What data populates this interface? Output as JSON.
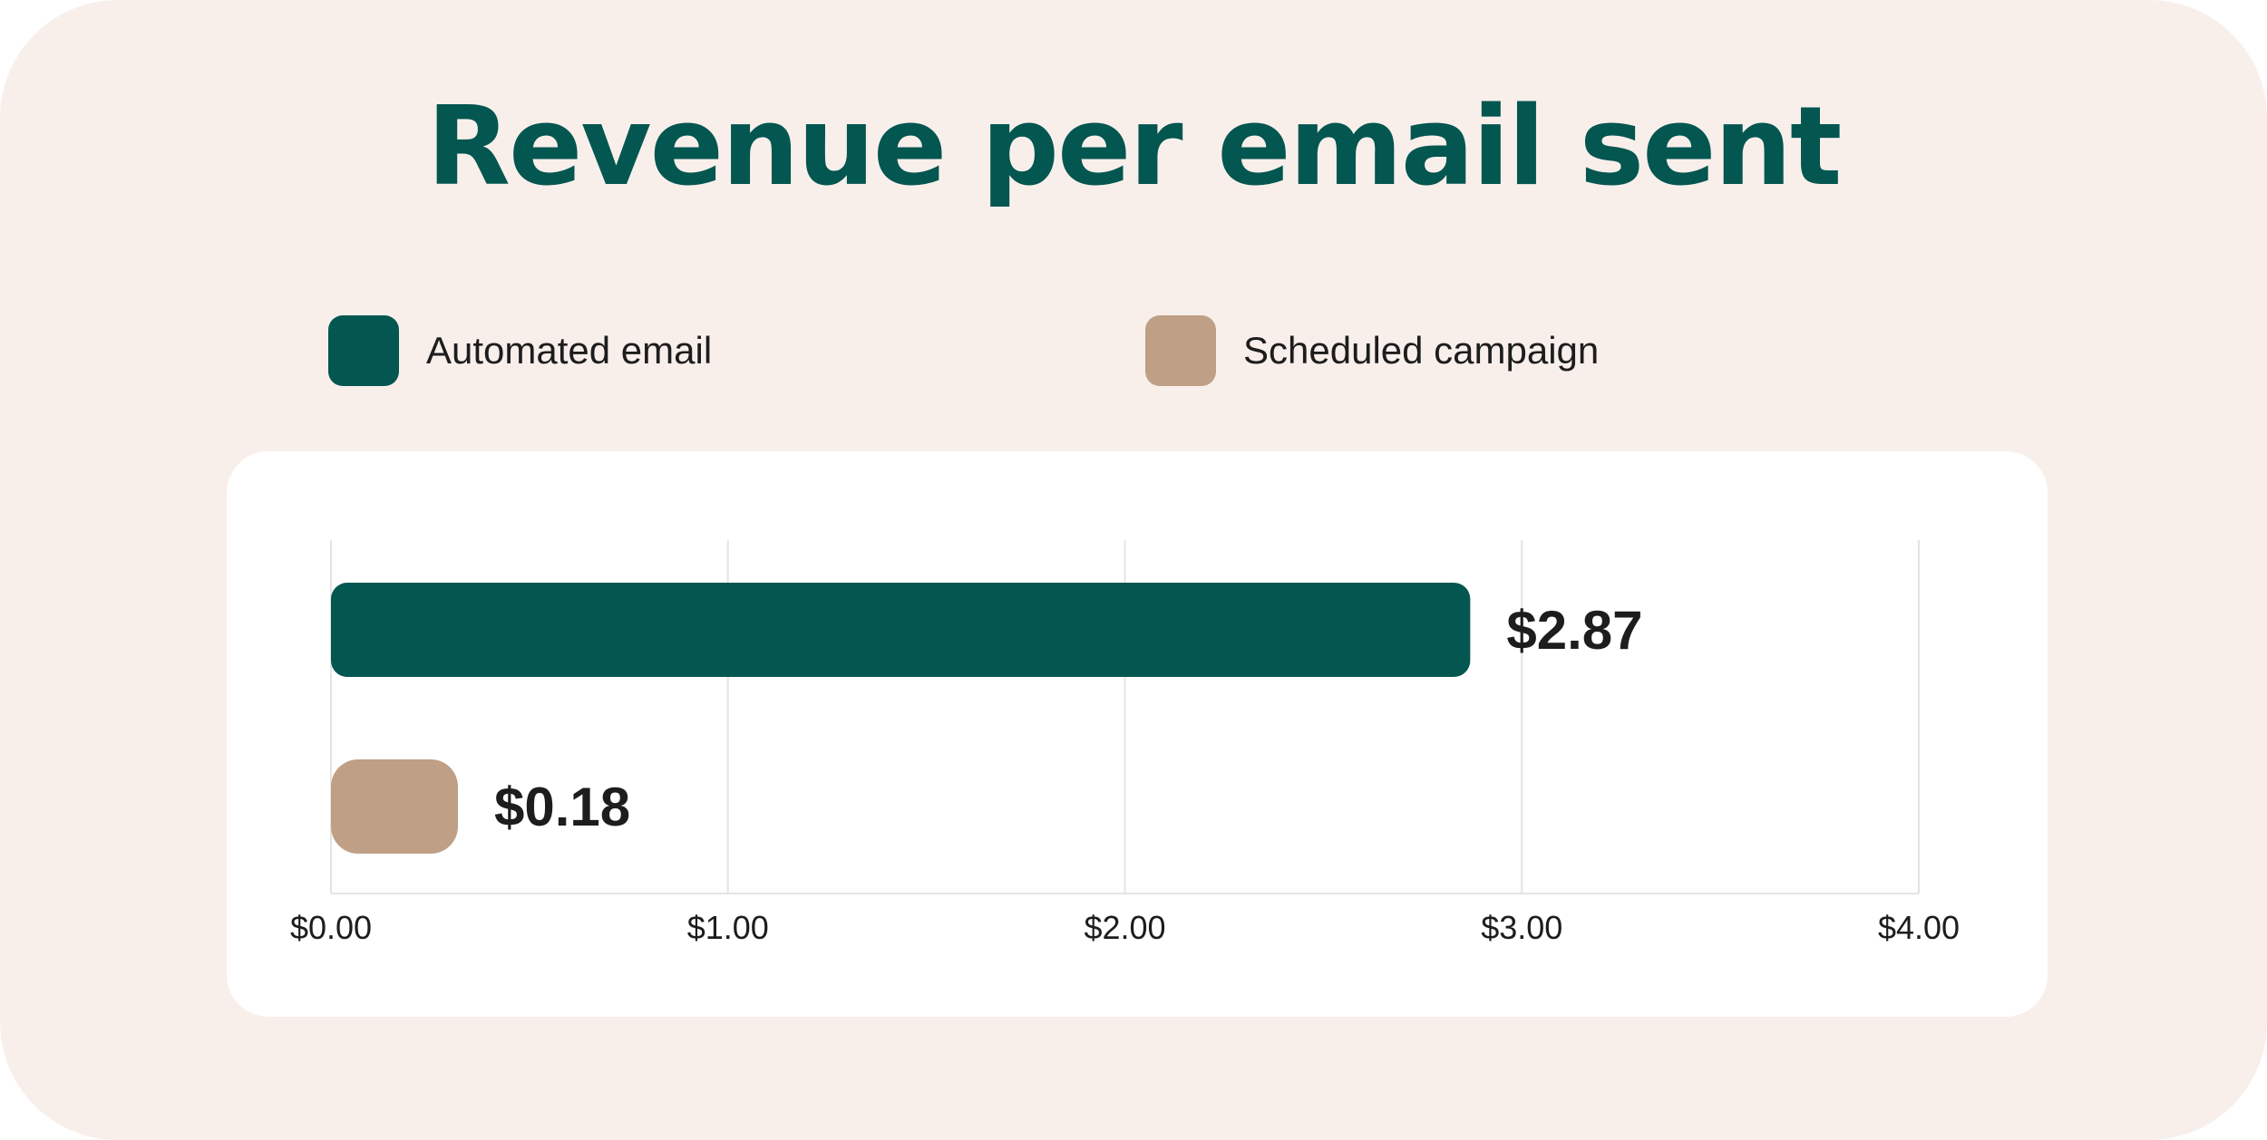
{
  "colors": {
    "background": "#f8efeb",
    "panel": "#ffffff",
    "title": "#045650",
    "automated": "#045650",
    "scheduled": "#bf9f85",
    "text": "#1d1d1d",
    "grid": "#e6e4e2"
  },
  "chart_data": {
    "type": "bar",
    "orientation": "horizontal",
    "title": "Revenue per email sent",
    "xlabel": "",
    "ylabel": "",
    "xlim": [
      0,
      4
    ],
    "xticks": [
      0,
      1,
      2,
      3,
      4
    ],
    "tick_labels": [
      "$0.00",
      "$1.00",
      "$2.00",
      "$3.00",
      "$4.00"
    ],
    "grid": true,
    "legend_position": "top",
    "series": [
      {
        "name": "Automated email",
        "value": 2.87,
        "label": "$2.87",
        "color": "#045650"
      },
      {
        "name": "Scheduled campaign",
        "value": 0.18,
        "label": "$0.18",
        "color": "#bf9f85"
      }
    ]
  }
}
